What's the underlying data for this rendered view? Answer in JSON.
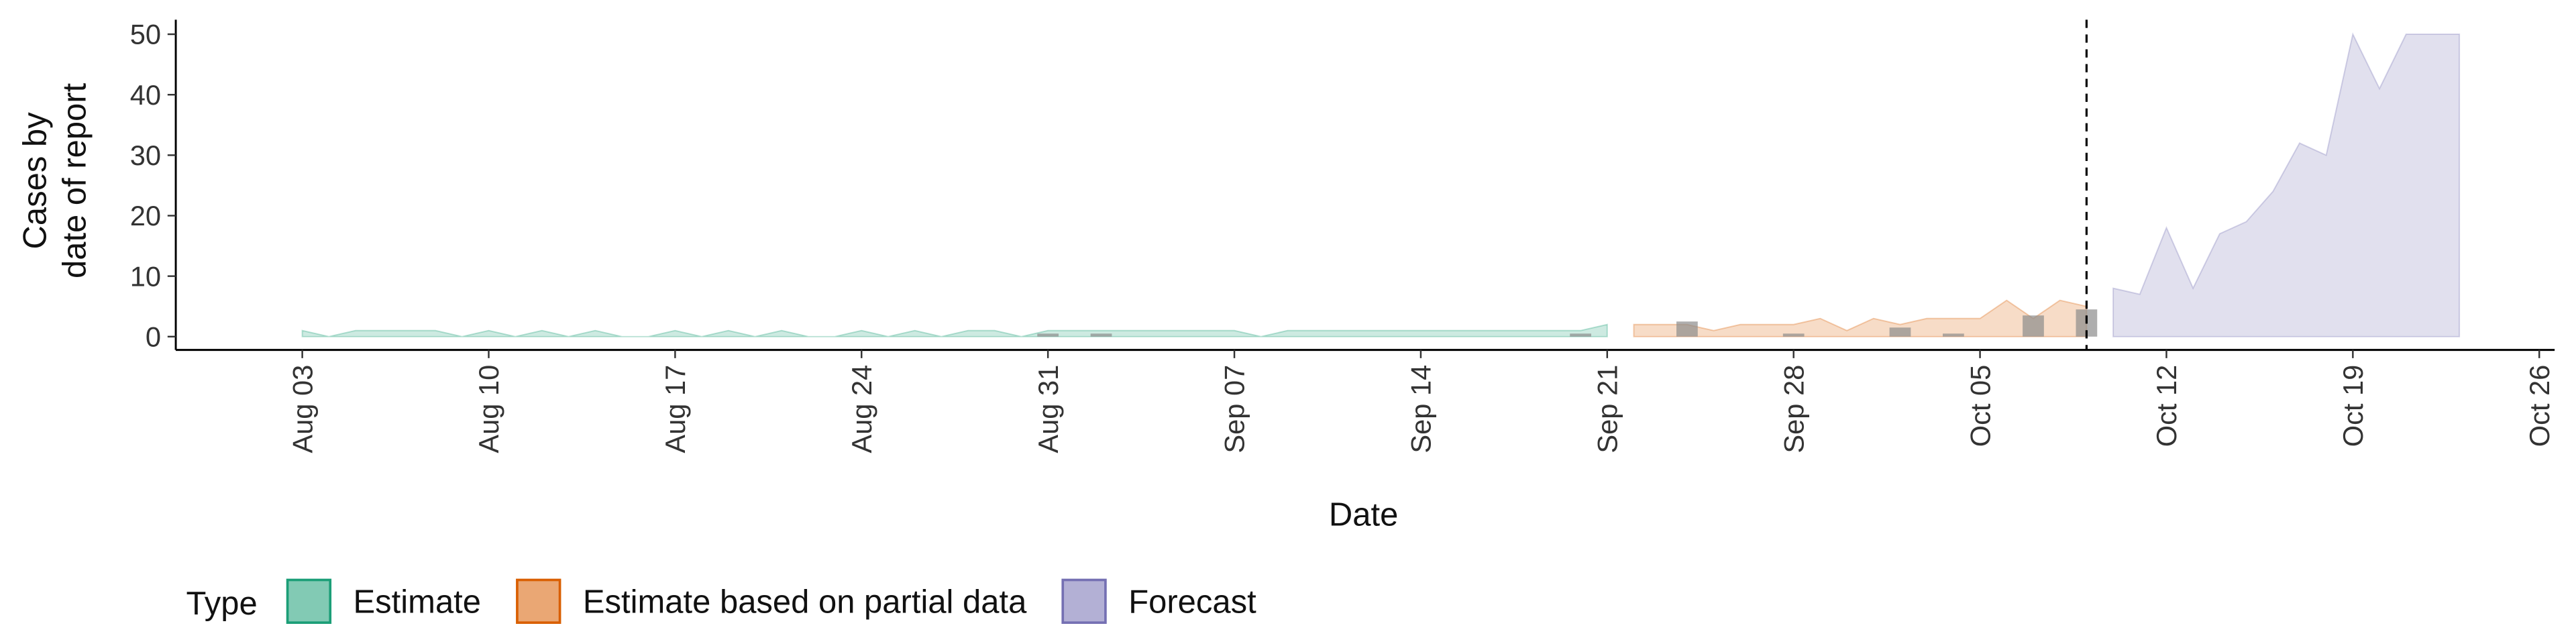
{
  "chart_data": {
    "type": "area",
    "xlabel": "Date",
    "ylabel": [
      "Cases by",
      "date of report"
    ],
    "legend_title": "Type",
    "legend": "bottom",
    "x": [
      "Aug 03",
      "Aug 04",
      "Aug 05",
      "Aug 06",
      "Aug 07",
      "Aug 08",
      "Aug 09",
      "Aug 10",
      "Aug 11",
      "Aug 12",
      "Aug 13",
      "Aug 14",
      "Aug 15",
      "Aug 16",
      "Aug 17",
      "Aug 18",
      "Aug 19",
      "Aug 20",
      "Aug 21",
      "Aug 22",
      "Aug 23",
      "Aug 24",
      "Aug 25",
      "Aug 26",
      "Aug 27",
      "Aug 28",
      "Aug 29",
      "Aug 30",
      "Aug 31",
      "Sep 01",
      "Sep 02",
      "Sep 03",
      "Sep 04",
      "Sep 05",
      "Sep 06",
      "Sep 07",
      "Sep 08",
      "Sep 09",
      "Sep 10",
      "Sep 11",
      "Sep 12",
      "Sep 13",
      "Sep 14",
      "Sep 15",
      "Sep 16",
      "Sep 17",
      "Sep 18",
      "Sep 19",
      "Sep 20",
      "Sep 21",
      "Sep 22",
      "Sep 23",
      "Sep 24",
      "Sep 25",
      "Sep 26",
      "Sep 27",
      "Sep 28",
      "Sep 29",
      "Sep 30",
      "Oct 01",
      "Oct 02",
      "Oct 03",
      "Oct 04",
      "Oct 05",
      "Oct 06",
      "Oct 07",
      "Oct 08",
      "Oct 09",
      "Oct 10",
      "Oct 11",
      "Oct 12",
      "Oct 13",
      "Oct 14",
      "Oct 15",
      "Oct 16",
      "Oct 17",
      "Oct 18",
      "Oct 19",
      "Oct 20",
      "Oct 21",
      "Oct 22",
      "Oct 23",
      "Oct 24",
      "Oct 25",
      "Oct 26"
    ],
    "xticks": [
      "Aug 03",
      "Aug 10",
      "Aug 17",
      "Aug 24",
      "Aug 31",
      "Sep 07",
      "Sep 14",
      "Sep 21",
      "Sep 28",
      "Oct 05",
      "Oct 12",
      "Oct 19",
      "Oct 26"
    ],
    "ylim": [
      -2.2,
      52.4
    ],
    "yticks": [
      0,
      10,
      20,
      30,
      40,
      50
    ],
    "vline": "Oct 09",
    "series": [
      {
        "name": "Estimate",
        "color": "#1b9e77",
        "values": [
          1,
          0,
          1,
          1,
          1,
          1,
          0,
          1,
          0,
          1,
          0,
          1,
          0,
          0,
          1,
          0,
          1,
          0,
          1,
          0,
          0,
          1,
          0,
          1,
          0,
          1,
          1,
          0,
          1,
          1,
          1,
          1,
          1,
          1,
          1,
          1,
          0,
          1,
          1,
          1,
          1,
          1,
          1,
          1,
          1,
          1,
          1,
          1,
          1,
          2,
          null,
          null,
          null,
          null,
          null,
          null,
          null,
          null,
          null,
          null,
          null,
          null,
          null,
          null,
          null,
          null,
          null,
          null,
          null,
          null,
          null,
          null,
          null,
          null,
          null,
          null,
          null,
          null,
          null,
          null,
          null,
          null,
          null,
          null,
          null
        ]
      },
      {
        "name": "Estimate based on partial data",
        "color": "#d95f02",
        "values": [
          null,
          null,
          null,
          null,
          null,
          null,
          null,
          null,
          null,
          null,
          null,
          null,
          null,
          null,
          null,
          null,
          null,
          null,
          null,
          null,
          null,
          null,
          null,
          null,
          null,
          null,
          null,
          null,
          null,
          null,
          null,
          null,
          null,
          null,
          null,
          null,
          null,
          null,
          null,
          null,
          null,
          null,
          null,
          null,
          null,
          null,
          null,
          null,
          null,
          null,
          2,
          2,
          2,
          1,
          2,
          2,
          2,
          3,
          1,
          3,
          2,
          3,
          3,
          3,
          6,
          3,
          6,
          5,
          null,
          null,
          null,
          null,
          null,
          null,
          null,
          null,
          null,
          null,
          null,
          null,
          null,
          null,
          null,
          null,
          null
        ]
      },
      {
        "name": "Forecast",
        "color": "#7570b3",
        "values": [
          null,
          null,
          null,
          null,
          null,
          null,
          null,
          null,
          null,
          null,
          null,
          null,
          null,
          null,
          null,
          null,
          null,
          null,
          null,
          null,
          null,
          null,
          null,
          null,
          null,
          null,
          null,
          null,
          null,
          null,
          null,
          null,
          null,
          null,
          null,
          null,
          null,
          null,
          null,
          null,
          null,
          null,
          null,
          null,
          null,
          null,
          null,
          null,
          null,
          null,
          null,
          null,
          null,
          null,
          null,
          null,
          null,
          null,
          null,
          null,
          null,
          null,
          null,
          null,
          null,
          null,
          null,
          null,
          8,
          7,
          18,
          8,
          17,
          19,
          24,
          32,
          30,
          50,
          41,
          50,
          50,
          50,
          null,
          null,
          null
        ]
      }
    ],
    "bars": {
      "color": "#8c8c8c",
      "values": [
        null,
        null,
        null,
        null,
        null,
        null,
        null,
        null,
        null,
        null,
        null,
        null,
        null,
        null,
        null,
        null,
        null,
        null,
        null,
        null,
        null,
        null,
        null,
        null,
        null,
        null,
        null,
        null,
        0.5,
        null,
        0.5,
        null,
        null,
        null,
        null,
        null,
        null,
        null,
        null,
        null,
        null,
        null,
        null,
        null,
        null,
        null,
        null,
        null,
        0.5,
        null,
        null,
        null,
        2.5,
        null,
        null,
        null,
        0.5,
        null,
        null,
        null,
        1.5,
        null,
        0.5,
        null,
        null,
        3.5,
        null,
        4.5,
        null,
        null,
        null,
        null,
        null,
        null,
        null,
        null,
        null,
        null,
        null,
        null,
        null,
        null,
        null,
        null,
        null
      ]
    }
  }
}
